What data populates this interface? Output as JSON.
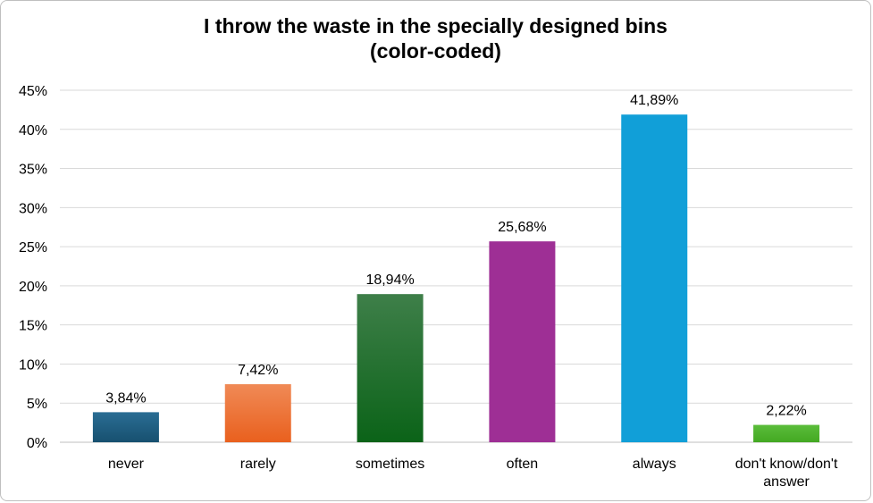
{
  "chart_data": {
    "type": "bar",
    "title_line1": "I throw the waste in the specially designed bins",
    "title_line2": "(color-coded)",
    "categories": [
      [
        "never"
      ],
      [
        "rarely"
      ],
      [
        "sometimes"
      ],
      [
        "often"
      ],
      [
        "always"
      ],
      [
        "don't know/don't",
        "answer"
      ]
    ],
    "values": [
      3.84,
      7.42,
      18.94,
      25.68,
      41.89,
      2.22
    ],
    "value_labels": [
      "3,84%",
      "7,42%",
      "18,94%",
      "25,68%",
      "41,89%",
      "2,22%"
    ],
    "colors": [
      [
        "#2a6d94",
        "#17506f"
      ],
      [
        "#f08a56",
        "#e9601e"
      ],
      [
        "#3e7f49",
        "#0b6318"
      ],
      [
        "#9e2f95",
        "#9e2f95"
      ],
      [
        "#119fd8",
        "#119fd8"
      ],
      [
        "#5bbd3b",
        "#43a822"
      ]
    ],
    "ylim": [
      0,
      45
    ],
    "yticks": [
      0,
      5,
      10,
      15,
      20,
      25,
      30,
      35,
      40,
      45
    ],
    "ytick_labels": [
      "0%",
      "5%",
      "10%",
      "15%",
      "20%",
      "25%",
      "30%",
      "35%",
      "40%",
      "45%"
    ],
    "grid": true,
    "xlabel": "",
    "ylabel": ""
  }
}
